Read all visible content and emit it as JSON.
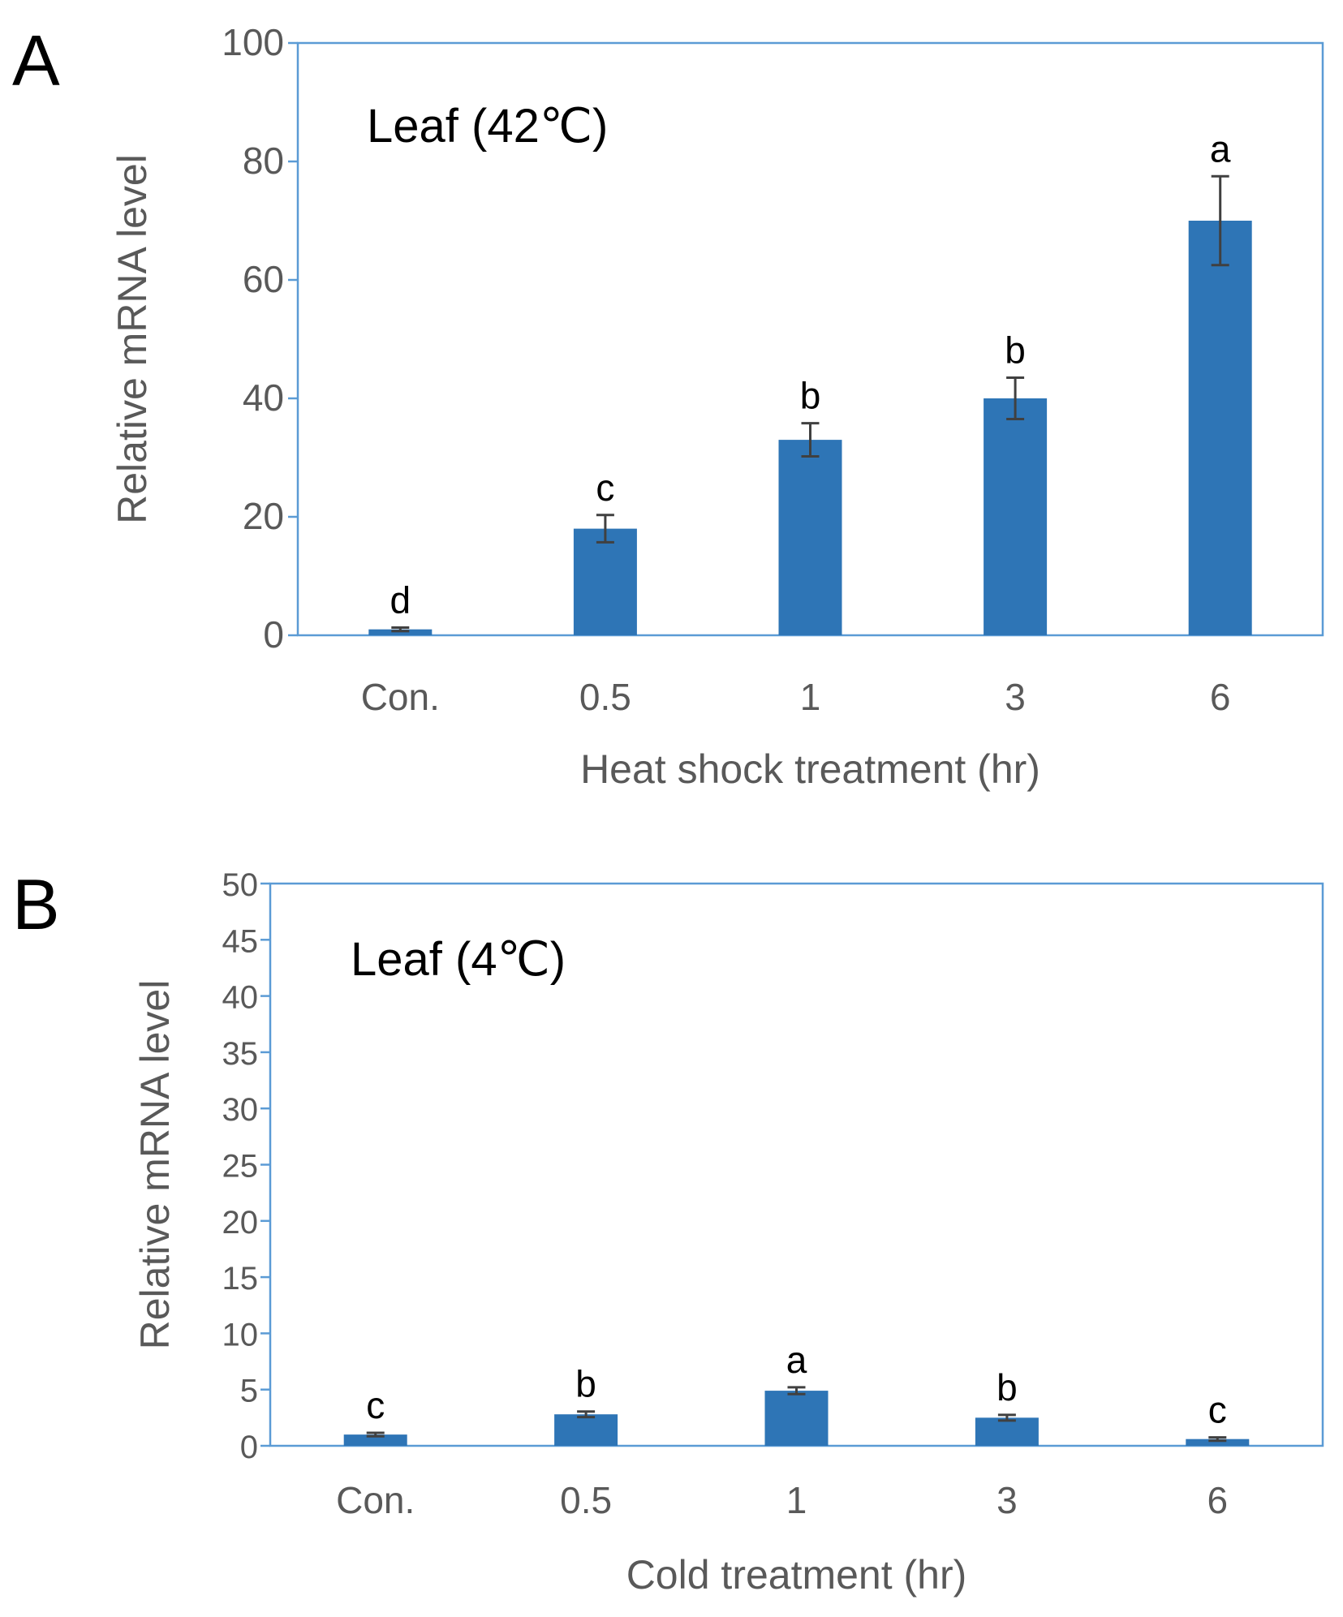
{
  "chart_data": [
    {
      "type": "bar",
      "panel": "A",
      "annotation": "Leaf (42℃)",
      "xlabel": "Heat shock treatment (hr)",
      "ylabel": "Relative mRNA level",
      "categories": [
        "Con.",
        "0.5",
        "1",
        "3",
        "6"
      ],
      "values": [
        1,
        18,
        33,
        40,
        70
      ],
      "errors": [
        0.3,
        2.3,
        2.8,
        3.5,
        7.5
      ],
      "significance": [
        "d",
        "c",
        "b",
        "b",
        "a"
      ],
      "ylim": [
        0,
        100
      ],
      "yticks": [
        0,
        20,
        40,
        60,
        80,
        100
      ],
      "grid": false,
      "color": "#2E75B6"
    },
    {
      "type": "bar",
      "panel": "B",
      "annotation": "Leaf (4℃)",
      "xlabel": "Cold treatment (hr)",
      "ylabel": "Relative mRNA level",
      "categories": [
        "Con.",
        "0.5",
        "1",
        "3",
        "6"
      ],
      "values": [
        1,
        2.8,
        4.9,
        2.5,
        0.6
      ],
      "errors": [
        0.15,
        0.25,
        0.3,
        0.25,
        0.15
      ],
      "significance": [
        "c",
        "b",
        "a",
        "b",
        "c"
      ],
      "ylim": [
        0,
        50
      ],
      "yticks": [
        0,
        5,
        10,
        15,
        20,
        25,
        30,
        35,
        40,
        45,
        50
      ],
      "grid": false,
      "color": "#2E75B6"
    }
  ],
  "colors": {
    "bar": "#2E75B6",
    "frame": "#5B9BD5",
    "errorbar": "#404040",
    "tick_text": "#595959"
  }
}
